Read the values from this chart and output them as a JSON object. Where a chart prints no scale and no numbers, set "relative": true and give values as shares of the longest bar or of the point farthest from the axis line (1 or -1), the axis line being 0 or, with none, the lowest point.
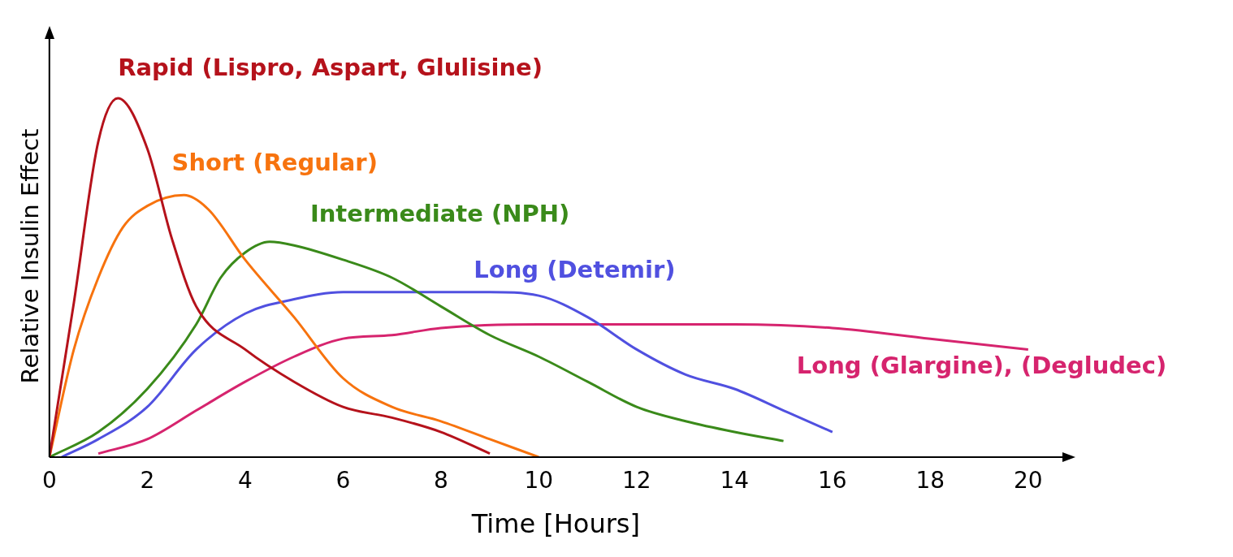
{
  "chart_data": {
    "type": "line",
    "relative": true,
    "xlabel": "Time [Hours]",
    "ylabel": "Relative Insulin Effect",
    "xlim": [
      0,
      20.7
    ],
    "xticks": [
      0,
      2,
      4,
      6,
      8,
      10,
      12,
      14,
      16,
      18,
      20
    ],
    "grid": false,
    "legend": false,
    "marker": "none",
    "line_style": "solid",
    "series": [
      {
        "name": "Rapid (Lispro, Aspart, Glulisine)",
        "color": "#b5121b",
        "x": [
          0,
          0.5,
          1,
          1.4,
          2,
          2.5,
          3,
          4,
          5,
          6,
          7,
          8,
          9
        ],
        "values": [
          0,
          0.43,
          0.88,
          1.0,
          0.86,
          0.61,
          0.42,
          0.3,
          0.21,
          0.14,
          0.11,
          0.07,
          0.01
        ]
      },
      {
        "name": "Short (Regular)",
        "color": "#f7730e",
        "x": [
          0,
          0.5,
          1,
          1.5,
          2,
          2.75,
          3.25,
          4,
          5,
          6,
          7,
          8,
          9,
          10
        ],
        "values": [
          0,
          0.3,
          0.5,
          0.64,
          0.7,
          0.73,
          0.69,
          0.55,
          0.39,
          0.22,
          0.14,
          0.1,
          0.05,
          0
        ]
      },
      {
        "name": "Intermediate (NPH)",
        "color": "#3a8a1a",
        "x": [
          0,
          1,
          2,
          3,
          3.5,
          4,
          4.5,
          5,
          6,
          7,
          8,
          9,
          10,
          11,
          12,
          13,
          14,
          15
        ],
        "values": [
          0,
          0.07,
          0.19,
          0.37,
          0.5,
          0.57,
          0.6,
          0.59,
          0.55,
          0.5,
          0.42,
          0.34,
          0.28,
          0.21,
          0.14,
          0.1,
          0.07,
          0.045
        ]
      },
      {
        "name": "Long (Detemir)",
        "color": "#5050e0",
        "x": [
          0.25,
          1,
          2,
          3,
          4,
          5,
          6,
          7,
          8,
          9,
          10,
          11,
          12,
          13,
          14,
          15,
          16
        ],
        "values": [
          0,
          0.05,
          0.14,
          0.3,
          0.4,
          0.44,
          0.46,
          0.46,
          0.46,
          0.46,
          0.45,
          0.39,
          0.3,
          0.23,
          0.19,
          0.13,
          0.07
        ]
      },
      {
        "name": "Long (Glargine), (Degludec)",
        "color": "#d6246e",
        "x": [
          1,
          2,
          3,
          4,
          5,
          6,
          7,
          8,
          10,
          12,
          14,
          16,
          18,
          20
        ],
        "values": [
          0.01,
          0.05,
          0.13,
          0.21,
          0.28,
          0.33,
          0.34,
          0.36,
          0.37,
          0.37,
          0.37,
          0.36,
          0.33,
          0.3
        ]
      }
    ]
  }
}
